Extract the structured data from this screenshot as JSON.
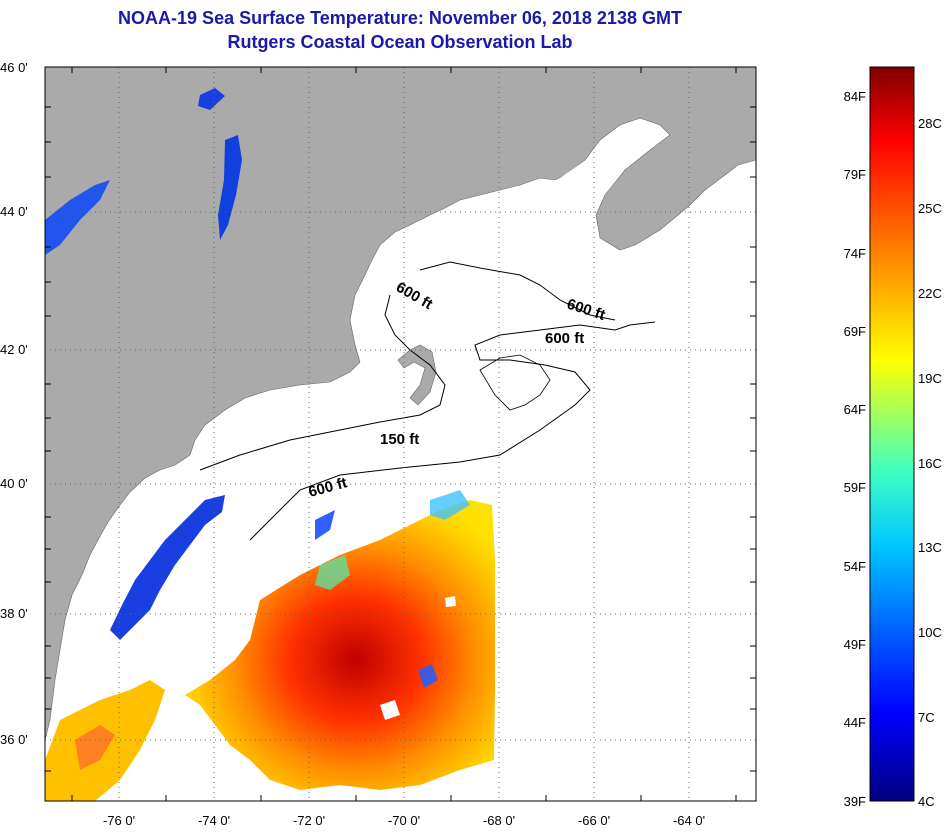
{
  "header": {
    "title": "NOAA-19 Sea Surface Temperature:  November 06, 2018 2138 GMT",
    "subtitle": "Rutgers Coastal Ocean Observation Lab"
  },
  "map": {
    "lat_ticks": [
      {
        "label": "46 0'",
        "value": 46
      },
      {
        "label": "44 0'",
        "value": 44
      },
      {
        "label": "42 0'",
        "value": 42
      },
      {
        "label": "40 0'",
        "value": 40
      },
      {
        "label": "38 0'",
        "value": 38
      },
      {
        "label": "36 0'",
        "value": 36
      }
    ],
    "lon_ticks": [
      {
        "label": "-76 0'",
        "value": -76
      },
      {
        "label": "-74 0'",
        "value": -74
      },
      {
        "label": "-72 0'",
        "value": -72
      },
      {
        "label": "-70 0'",
        "value": -70
      },
      {
        "label": "-68 0'",
        "value": -68
      },
      {
        "label": "-66 0'",
        "value": -66
      },
      {
        "label": "-64 0'",
        "value": -64
      }
    ],
    "contour_labels": [
      "600 ft",
      "600 ft",
      "600 ft",
      "150 ft",
      "600 ft"
    ],
    "colors": {
      "land": "#aaaaaa",
      "water_nodata": "#ffffff",
      "grid": "#555555"
    }
  },
  "colorbar": {
    "fahrenheit": [
      "84F",
      "79F",
      "74F",
      "69F",
      "64F",
      "59F",
      "54F",
      "49F",
      "44F",
      "39F"
    ],
    "celsius": [
      "28C",
      "25C",
      "22C",
      "19C",
      "16C",
      "13C",
      "10C",
      "7C",
      "4C"
    ],
    "gradient": [
      "#00007f",
      "#0000ff",
      "#0080ff",
      "#00ffff",
      "#80ff80",
      "#ffff00",
      "#ff8000",
      "#ff0000",
      "#7f0000"
    ]
  }
}
